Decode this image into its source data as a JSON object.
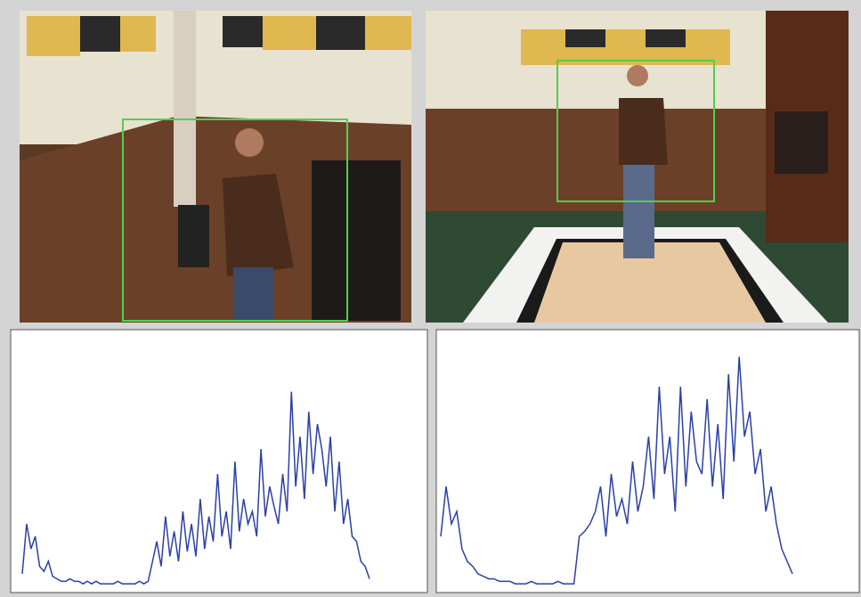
{
  "chart_data": [
    {
      "type": "line",
      "color": "#2b3fa8",
      "ylim": [
        0,
        100
      ],
      "values": [
        5,
        25,
        15,
        20,
        8,
        6,
        10,
        4,
        3,
        2,
        2,
        3,
        2,
        2,
        1,
        2,
        1,
        2,
        1,
        1,
        1,
        1,
        2,
        1,
        1,
        1,
        1,
        2,
        1,
        2,
        10,
        18,
        8,
        28,
        12,
        22,
        10,
        30,
        14,
        25,
        12,
        35,
        15,
        28,
        18,
        45,
        20,
        30,
        15,
        50,
        22,
        35,
        25,
        30,
        20,
        55,
        28,
        40,
        32,
        25,
        45,
        30,
        78,
        40,
        60,
        35,
        70,
        45,
        65,
        55,
        40,
        60,
        30,
        50,
        25,
        35,
        20,
        18,
        10,
        8,
        3
      ]
    },
    {
      "type": "line",
      "color": "#2b3fa8",
      "ylim": [
        0,
        100
      ],
      "values": [
        20,
        40,
        25,
        30,
        15,
        10,
        8,
        5,
        4,
        3,
        3,
        2,
        2,
        2,
        1,
        1,
        1,
        2,
        1,
        1,
        1,
        1,
        2,
        1,
        1,
        1,
        20,
        22,
        25,
        30,
        40,
        20,
        45,
        28,
        35,
        25,
        50,
        30,
        40,
        60,
        35,
        80,
        45,
        60,
        30,
        80,
        40,
        70,
        50,
        45,
        75,
        40,
        65,
        35,
        85,
        50,
        92,
        60,
        70,
        45,
        55,
        30,
        40,
        25,
        15,
        10,
        5
      ]
    }
  ]
}
